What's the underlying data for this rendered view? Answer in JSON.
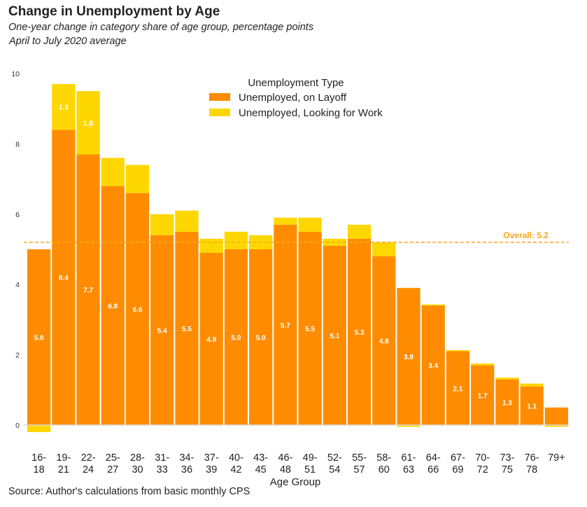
{
  "header": {
    "title": "Change in Unemployment by Age",
    "subtitle": "One-year change in category share of age group, percentage points",
    "subtitle2": "April to July 2020 average"
  },
  "footer": {
    "source": "Source: Author's calculations from basic monthly CPS"
  },
  "chart_data": {
    "type": "bar",
    "stacked": true,
    "title": "Change in Unemployment by Age",
    "xlabel": "Age Group",
    "ylabel": "",
    "ylim": [
      -0.4,
      10
    ],
    "yticks": [
      0,
      2,
      4,
      6,
      8,
      10
    ],
    "grid": false,
    "legend": {
      "title": "Unemployment Type",
      "placement": "top-center"
    },
    "colors": {
      "layoff": "#ff8c00",
      "looking": "#ffd700",
      "reference": "#f2a81d"
    },
    "categories": [
      [
        "16-",
        "18"
      ],
      [
        "19-",
        "21"
      ],
      [
        "22-",
        "24"
      ],
      [
        "25-",
        "27"
      ],
      [
        "28-",
        "30"
      ],
      [
        "31-",
        "33"
      ],
      [
        "34-",
        "36"
      ],
      [
        "37-",
        "39"
      ],
      [
        "40-",
        "42"
      ],
      [
        "43-",
        "45"
      ],
      [
        "46-",
        "48"
      ],
      [
        "49-",
        "51"
      ],
      [
        "52-",
        "54"
      ],
      [
        "55-",
        "57"
      ],
      [
        "58-",
        "60"
      ],
      [
        "61-",
        "63"
      ],
      [
        "64-",
        "66"
      ],
      [
        "67-",
        "69"
      ],
      [
        "70-",
        "72"
      ],
      [
        "73-",
        "75"
      ],
      [
        "76-",
        "78"
      ],
      [
        "79+"
      ]
    ],
    "series": [
      {
        "name": "Unemployed, on Layoff",
        "values": [
          5.0,
          8.4,
          7.7,
          6.8,
          6.6,
          5.4,
          5.5,
          4.9,
          5.0,
          5.0,
          5.7,
          5.5,
          5.1,
          5.3,
          4.8,
          3.9,
          3.4,
          2.1,
          1.7,
          1.3,
          1.1,
          0.5
        ],
        "labels": [
          "5.0",
          "8.4",
          "7.7",
          "6.8",
          "6.6",
          "5.4",
          "5.5",
          "4.9",
          "5.0",
          "5.0",
          "5.7",
          "5.5",
          "5.1",
          "5.3",
          "4.8",
          "3.9",
          "3.4",
          "2.1",
          "1.7",
          "1.3",
          "1.1",
          ""
        ]
      },
      {
        "name": "Unemployed, Looking for Work",
        "values": [
          -0.2,
          1.3,
          1.8,
          0.8,
          0.8,
          0.6,
          0.6,
          0.4,
          0.5,
          0.4,
          0.2,
          0.4,
          0.2,
          0.4,
          0.4,
          -0.05,
          0.03,
          0.03,
          0.05,
          0.05,
          0.08,
          -0.05
        ],
        "labels": [
          "",
          "1.3",
          "1.8",
          "",
          "",
          "",
          "",
          "",
          "",
          "",
          "",
          "",
          "",
          "",
          "",
          "",
          "",
          "",
          "",
          "",
          "",
          ""
        ]
      }
    ],
    "reference_line": {
      "value": 5.2,
      "label": "Overall: 5.2"
    }
  }
}
